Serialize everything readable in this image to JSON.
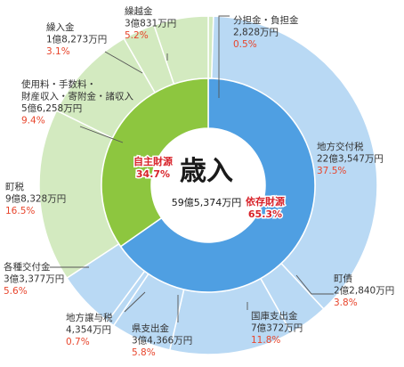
{
  "chart_data": {
    "type": "pie",
    "title": "歳入",
    "total": "59億5,374万円",
    "colors": {
      "dependent_outer": "#b9d9f4",
      "dependent_inner": "#4f9fe2",
      "independent_outer": "#d3eac0",
      "independent_inner": "#8dc63f",
      "percent_text": "#e8452c"
    },
    "groups": [
      {
        "name": "依存財源",
        "percent": "65.3%",
        "share": 65.3,
        "category": "dependent"
      },
      {
        "name": "自主財源",
        "percent": "34.7%",
        "share": 34.7,
        "category": "independent"
      }
    ],
    "items": [
      {
        "name": "分担金・負担金",
        "amount": "2,828万円",
        "percent": "0.5%",
        "value": 0.5,
        "group": "independent"
      },
      {
        "name": "地方交付税",
        "amount": "22億3,547万円",
        "percent": "37.5%",
        "value": 37.5,
        "group": "dependent"
      },
      {
        "name": "町債",
        "amount": "2億2,840万円",
        "percent": "3.8%",
        "value": 3.8,
        "group": "dependent"
      },
      {
        "name": "国庫支出金",
        "amount": "7億372万円",
        "percent": "11.8%",
        "value": 11.8,
        "group": "dependent"
      },
      {
        "name": "県支出金",
        "amount": "3億4,366万円",
        "percent": "5.8%",
        "value": 5.8,
        "group": "dependent"
      },
      {
        "name": "地方譲与税",
        "amount": "4,354万円",
        "percent": "0.7%",
        "value": 0.7,
        "group": "dependent"
      },
      {
        "name": "各種交付金",
        "amount": "3億3,377万円",
        "percent": "5.6%",
        "value": 5.6,
        "group": "dependent"
      },
      {
        "name": "町税",
        "amount": "9億8,328万円",
        "percent": "16.5%",
        "value": 16.5,
        "group": "independent"
      },
      {
        "name_lines": [
          "使用料・手数料・",
          "財産収入・寄附金・諸収入"
        ],
        "amount": "5億6,258万円",
        "percent": "9.4%",
        "value": 9.4,
        "group": "independent"
      },
      {
        "name": "繰入金",
        "amount": "1億8,273万円",
        "percent": "3.1%",
        "value": 3.1,
        "group": "independent"
      },
      {
        "name": "繰越金",
        "amount": "3億831万円",
        "percent": "5.2%",
        "value": 5.2,
        "group": "independent"
      }
    ]
  }
}
